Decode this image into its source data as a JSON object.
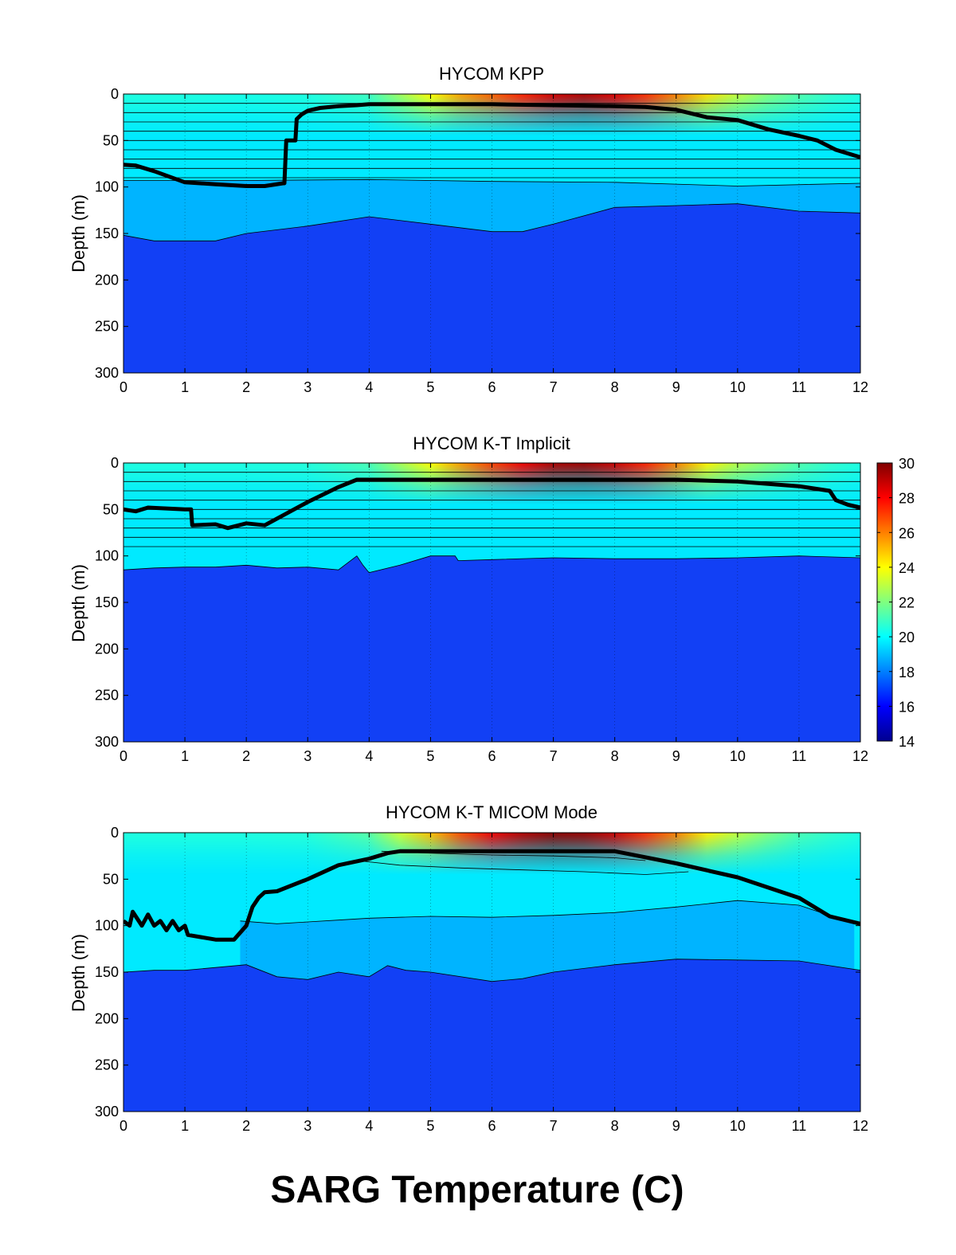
{
  "figure": {
    "suptitle": "SARG Temperature (C)"
  },
  "chart_data": [
    {
      "type": "heatmap",
      "title": "HYCOM KPP",
      "xlabel": "",
      "ylabel": "Depth (m)",
      "xlim": [
        0,
        12
      ],
      "ylim": [
        0,
        300
      ],
      "y_reversed": true,
      "xticks": [
        "0",
        "1",
        "2",
        "3",
        "4",
        "5",
        "6",
        "7",
        "8",
        "9",
        "10",
        "11",
        "12"
      ],
      "yticks": [
        "0",
        "50",
        "100",
        "150",
        "200",
        "250",
        "300"
      ],
      "vertical_grid": "dotted",
      "layer_interfaces_depth": [
        10,
        20,
        30,
        40,
        50,
        60,
        70,
        80,
        90
      ],
      "surface_temperature": {
        "x": [
          0,
          1,
          2,
          3,
          4,
          4.5,
          5,
          5.5,
          6,
          6.5,
          7,
          7.5,
          8,
          8.5,
          9,
          9.5,
          10,
          10.5,
          11,
          11.5,
          12
        ],
        "temp": [
          20.5,
          20.5,
          20.4,
          20.5,
          21.0,
          22.5,
          24.0,
          25.5,
          26.5,
          27.5,
          28.7,
          29.2,
          28.5,
          27.3,
          26.0,
          24.5,
          23.0,
          22.0,
          21.3,
          20.8,
          20.5
        ]
      },
      "contours": [
        {
          "name": "isotherm-18",
          "x": [
            0,
            2,
            4,
            6,
            8,
            10,
            12
          ],
          "depth": [
            93,
            93,
            92,
            94,
            95,
            99,
            96
          ]
        },
        {
          "name": "isotherm-17",
          "x": [
            0,
            0.5,
            1,
            1.5,
            2,
            3,
            4,
            5,
            6,
            6.5,
            7,
            8,
            9,
            10,
            11,
            12
          ],
          "depth": [
            152,
            158,
            158,
            158,
            150,
            142,
            132,
            140,
            148,
            148,
            140,
            122,
            120,
            118,
            126,
            128
          ]
        }
      ],
      "mixed_layer_depth": {
        "x": [
          0,
          0.2,
          0.5,
          1,
          1.5,
          2,
          2.3,
          2.6,
          2.62,
          2.65,
          2.8,
          2.82,
          2.9,
          3,
          3.2,
          3.5,
          3.8,
          4,
          5,
          6,
          7,
          8,
          8.5,
          9,
          9.5,
          10,
          10.3,
          10.5,
          11,
          11.3,
          11.6,
          12
        ],
        "depth": [
          76,
          77,
          83,
          95,
          97,
          99,
          99,
          96,
          96,
          50,
          50,
          27,
          22,
          18,
          15,
          13,
          12,
          11,
          11,
          11,
          12,
          13,
          14,
          17,
          25,
          28,
          34,
          38,
          45,
          50,
          60,
          68
        ]
      },
      "colorbar": false
    },
    {
      "type": "heatmap",
      "title": "HYCOM K-T Implicit",
      "xlabel": "",
      "ylabel": "Depth (m)",
      "xlim": [
        0,
        12
      ],
      "ylim": [
        0,
        300
      ],
      "y_reversed": true,
      "xticks": [
        "0",
        "1",
        "2",
        "3",
        "4",
        "5",
        "6",
        "7",
        "8",
        "9",
        "10",
        "11",
        "12"
      ],
      "yticks": [
        "0",
        "50",
        "100",
        "150",
        "200",
        "250",
        "300"
      ],
      "vertical_grid": "dotted",
      "layer_interfaces_depth": [
        10,
        20,
        30,
        40,
        50,
        60,
        70,
        80,
        90
      ],
      "surface_temperature": {
        "x": [
          0,
          1,
          2,
          3,
          4,
          4.5,
          5,
          5.5,
          6,
          6.5,
          7,
          7.5,
          8,
          8.5,
          9,
          9.5,
          10,
          10.5,
          11,
          11.5,
          12
        ],
        "temp": [
          20.5,
          20.5,
          20.5,
          20.6,
          21.2,
          22.6,
          24.0,
          25.6,
          27.0,
          28.2,
          29.3,
          29.5,
          28.8,
          27.5,
          26.0,
          24.2,
          22.8,
          22.0,
          21.3,
          20.8,
          20.5
        ]
      },
      "contours": [
        {
          "name": "isotherm-17",
          "x": [
            0,
            0.5,
            1,
            1.5,
            2,
            2.5,
            3,
            3.5,
            3.8,
            3.9,
            4,
            4.5,
            5,
            5.4,
            5.45,
            5.5,
            6,
            7,
            8,
            9,
            10,
            11,
            12
          ],
          "depth": [
            115,
            113,
            112,
            112,
            110,
            113,
            112,
            115,
            100,
            110,
            118,
            110,
            100,
            100,
            105,
            105,
            104,
            102,
            103,
            103,
            102,
            100,
            102
          ]
        }
      ],
      "mixed_layer_depth": {
        "x": [
          0,
          0.2,
          0.4,
          1,
          1.1,
          1.12,
          1.5,
          1.7,
          2,
          2.3,
          3,
          3.5,
          3.8,
          4,
          5,
          6,
          7,
          8,
          9,
          10,
          11,
          11.5,
          11.6,
          11.8,
          12
        ],
        "depth": [
          50,
          52,
          48,
          50,
          50,
          67,
          66,
          70,
          65,
          67,
          42,
          26,
          18,
          18,
          18,
          18,
          18,
          18,
          18,
          20,
          25,
          30,
          40,
          45,
          48
        ]
      },
      "colorbar": true
    },
    {
      "type": "heatmap",
      "title": "HYCOM K-T MICOM Mode",
      "xlabel": "",
      "ylabel": "Depth (m)",
      "xlim": [
        0,
        12
      ],
      "ylim": [
        0,
        300
      ],
      "y_reversed": true,
      "xticks": [
        "0",
        "1",
        "2",
        "3",
        "4",
        "5",
        "6",
        "7",
        "8",
        "9",
        "10",
        "11",
        "12"
      ],
      "yticks": [
        "0",
        "50",
        "100",
        "150",
        "200",
        "250",
        "300"
      ],
      "vertical_grid": "dotted",
      "layer_interfaces_depth": [],
      "surface_temperature": {
        "x": [
          0,
          1,
          2,
          3,
          4,
          4.5,
          5,
          5.5,
          6,
          6.5,
          7,
          7.5,
          8,
          8.5,
          9,
          9.5,
          10,
          10.5,
          11,
          11.5,
          12
        ],
        "temp": [
          20.5,
          20.5,
          20.5,
          20.6,
          21.4,
          23.2,
          25.0,
          26.8,
          28.2,
          29.2,
          29.8,
          29.6,
          28.8,
          27.3,
          26.0,
          24.3,
          23.0,
          22.0,
          21.2,
          20.8,
          20.5
        ]
      },
      "contours": [
        {
          "name": "isotherm-25",
          "x": [
            4.2,
            5,
            6,
            7,
            8,
            8.5
          ],
          "depth": [
            20,
            22,
            24,
            25,
            27,
            30
          ]
        },
        {
          "name": "isotherm-22",
          "x": [
            3.8,
            4.5,
            5.5,
            6.5,
            7.5,
            8.5,
            9.2
          ],
          "depth": [
            30,
            35,
            38,
            40,
            42,
            45,
            42
          ]
        },
        {
          "name": "isotherm-20",
          "x": [
            1.9,
            2.5,
            3,
            3.5,
            4,
            5,
            6,
            7,
            8,
            9,
            10,
            11,
            11.9
          ],
          "depth": [
            95,
            98,
            96,
            94,
            92,
            90,
            91,
            89,
            86,
            80,
            73,
            78,
            98
          ]
        },
        {
          "name": "isotherm-18",
          "x": [
            0,
            0.5,
            1,
            1.5,
            2,
            2.5,
            3,
            3.5,
            4,
            4.3,
            4.6,
            5,
            6,
            6.5,
            7,
            8,
            9,
            10,
            11,
            12
          ],
          "depth": [
            150,
            148,
            148,
            145,
            142,
            155,
            158,
            150,
            155,
            143,
            148,
            150,
            160,
            157,
            150,
            142,
            136,
            137,
            138,
            148
          ]
        }
      ],
      "mixed_layer_depth": {
        "x": [
          0,
          0.1,
          0.15,
          0.3,
          0.4,
          0.5,
          0.6,
          0.7,
          0.8,
          0.9,
          1,
          1.05,
          1.5,
          1.8,
          2,
          2.1,
          2.2,
          2.3,
          2.5,
          3,
          3.5,
          4,
          4.3,
          4.5,
          5,
          6,
          7,
          8,
          9,
          10,
          11,
          11.5,
          12
        ],
        "depth": [
          95,
          100,
          85,
          100,
          88,
          100,
          95,
          105,
          95,
          105,
          100,
          110,
          115,
          115,
          100,
          80,
          70,
          64,
          63,
          50,
          35,
          28,
          22,
          20,
          20,
          20,
          20,
          20,
          33,
          48,
          70,
          90,
          98
        ]
      },
      "colorbar": false
    }
  ],
  "colorbar": {
    "label": "",
    "min": 14,
    "max": 30,
    "ticks": [
      "30",
      "28",
      "26",
      "24",
      "22",
      "20",
      "18",
      "16",
      "14"
    ],
    "colormap": "jet"
  },
  "colors": {
    "deep_water": "#1240f5",
    "mid_water": "#00b4ff",
    "upper_water": "#00eaff",
    "mixed_layer_line": "#000000"
  }
}
